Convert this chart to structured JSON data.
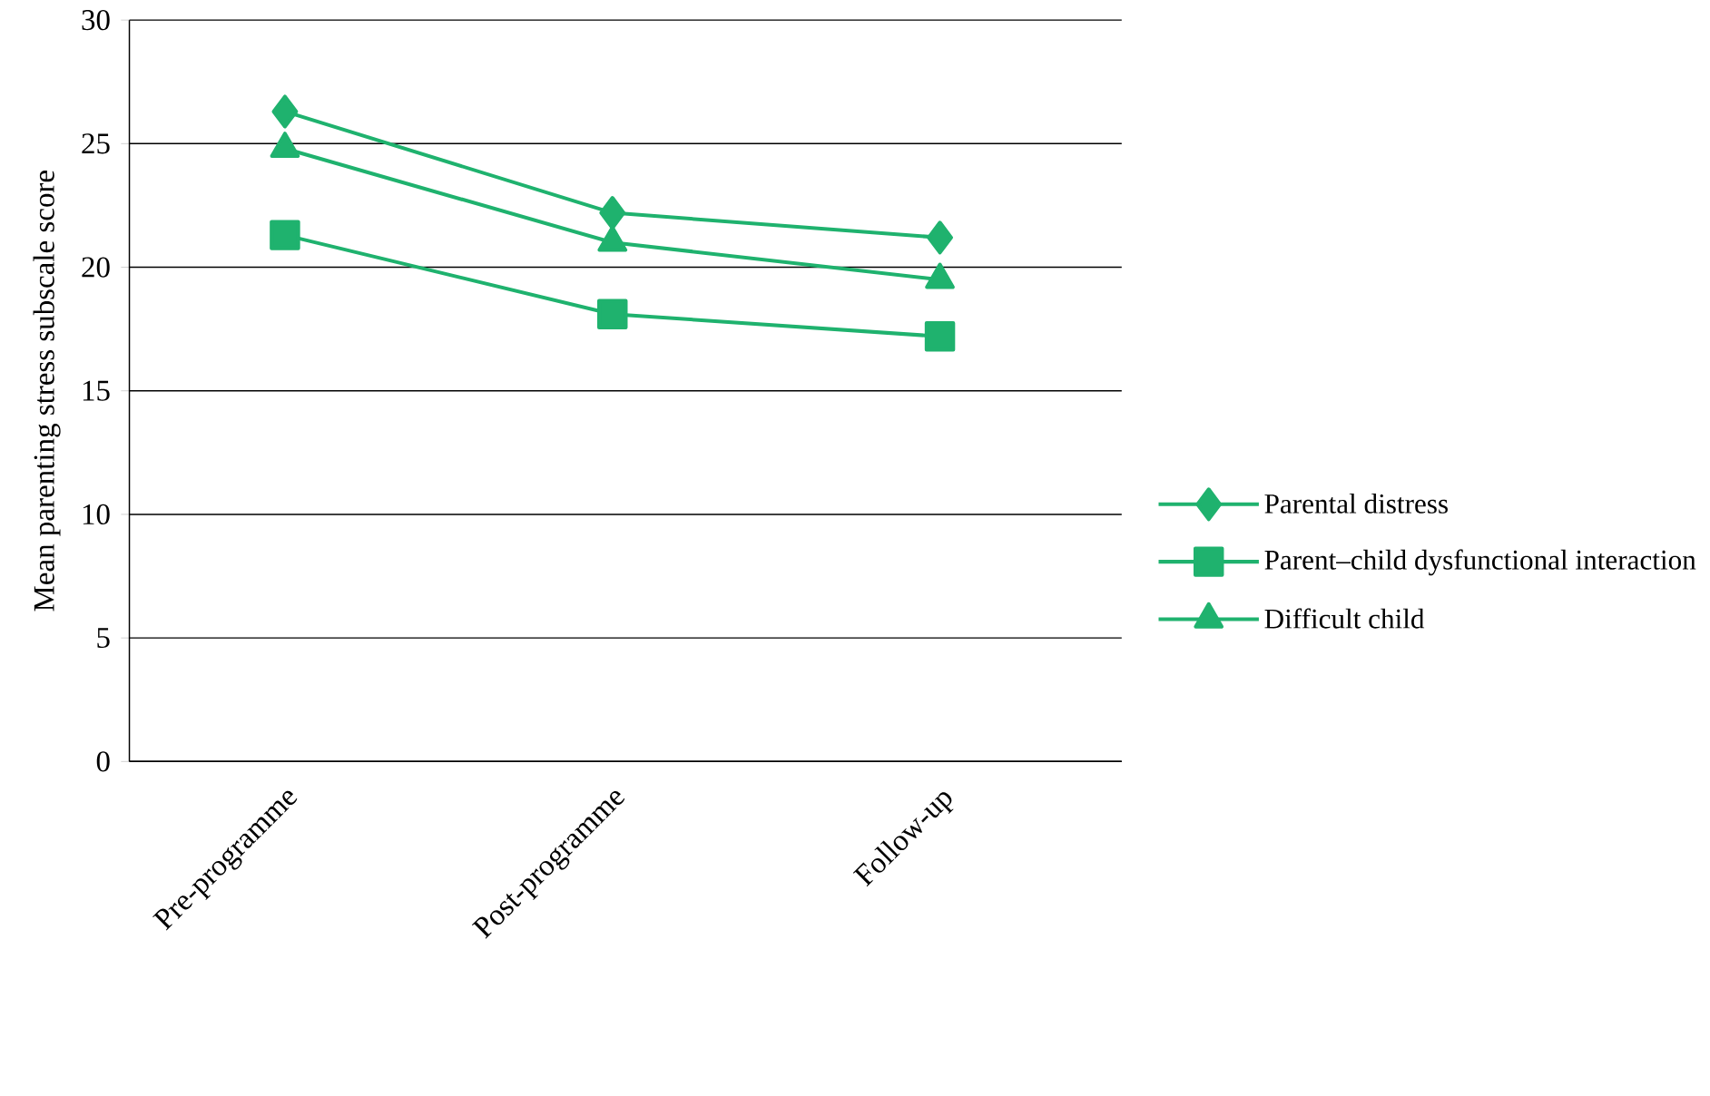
{
  "chart_data": {
    "type": "line",
    "ylabel": "Mean parenting stress subscale score",
    "categories": [
      "Pre-programme",
      "Post-programme",
      "Follow-up"
    ],
    "series": [
      {
        "name": "Parental distress",
        "color": "#1fb26e",
        "marker": "diamond",
        "values": [
          26.3,
          22.2,
          21.2
        ]
      },
      {
        "name": "Parent–child dysfunctional interaction",
        "color": "#1fb26e",
        "marker": "square",
        "values": [
          21.3,
          18.1,
          17.2
        ]
      },
      {
        "name": "Difficult child",
        "color": "#1fb26e",
        "marker": "triangle",
        "values": [
          24.8,
          21.0,
          19.5
        ]
      }
    ],
    "ylim": [
      0,
      30
    ],
    "yticks": [
      0,
      5,
      10,
      15,
      20,
      25,
      30
    ],
    "grid": "y",
    "legend": "right",
    "line_style": "solid"
  }
}
